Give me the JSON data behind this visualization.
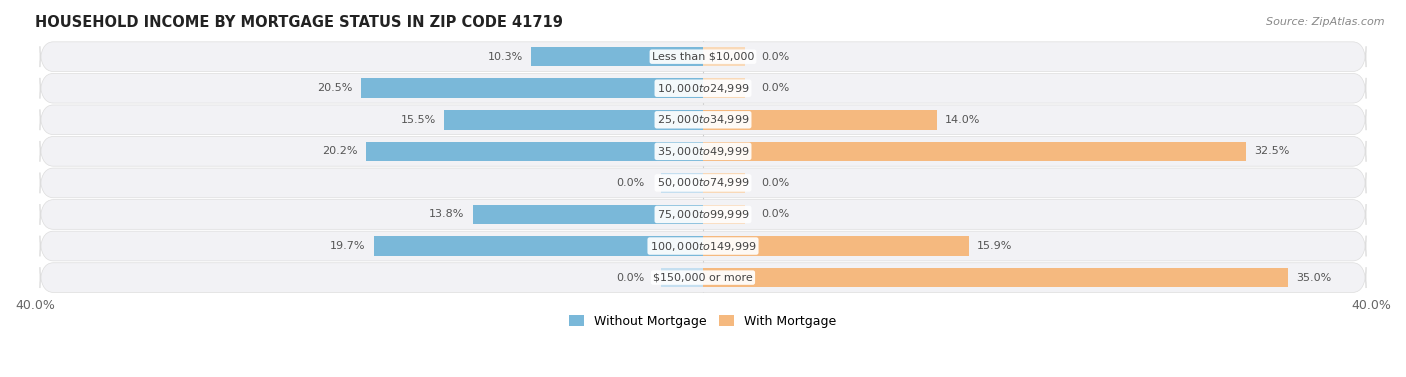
{
  "title": "HOUSEHOLD INCOME BY MORTGAGE STATUS IN ZIP CODE 41719",
  "source": "Source: ZipAtlas.com",
  "categories": [
    "Less than $10,000",
    "$10,000 to $24,999",
    "$25,000 to $34,999",
    "$35,000 to $49,999",
    "$50,000 to $74,999",
    "$75,000 to $99,999",
    "$100,000 to $149,999",
    "$150,000 or more"
  ],
  "without_mortgage": [
    10.3,
    20.5,
    15.5,
    20.2,
    0.0,
    13.8,
    19.7,
    0.0
  ],
  "with_mortgage": [
    0.0,
    0.0,
    14.0,
    32.5,
    0.0,
    0.0,
    15.9,
    35.0
  ],
  "x_min": -40.0,
  "x_max": 40.0,
  "color_without": "#7ab8d9",
  "color_with": "#f5b97f",
  "color_without_pale": "#c5dff0",
  "color_with_pale": "#f9d9b8",
  "row_bg": "#f2f2f5",
  "bar_height": 0.62,
  "label_fontsize": 8.0,
  "title_fontsize": 10.5,
  "legend_fontsize": 9,
  "cat_fontsize": 8.0
}
